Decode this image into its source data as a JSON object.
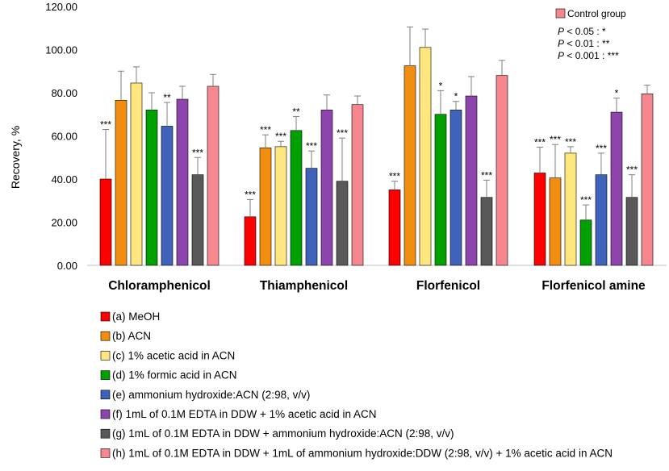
{
  "chart_data": {
    "type": "bar",
    "title": "",
    "ylabel": "Recovery, %",
    "xlabel": "",
    "ylim": [
      0,
      120
    ],
    "yticks": [
      "0.00",
      "20.00",
      "40.00",
      "60.00",
      "80.00",
      "100.00",
      "120.00"
    ],
    "categories": [
      "Chloramphenicol",
      "Thiamphenicol",
      "Florfenicol",
      "Florfenicol amine"
    ],
    "series": [
      {
        "name": "(a) MeOH",
        "color": "#ff0000",
        "values": [
          40,
          22.5,
          35,
          42.8
        ],
        "errors": [
          23,
          8,
          4,
          12
        ],
        "sig": [
          "***",
          "***",
          "***",
          "***"
        ]
      },
      {
        "name": "(b) ACN",
        "color": "#f28e0f",
        "values": [
          76.5,
          54.5,
          92.5,
          40.5
        ],
        "errors": [
          13.5,
          6,
          18,
          15.5
        ],
        "sig": [
          "",
          "***",
          "",
          "***"
        ]
      },
      {
        "name": "(c) 1% acetic acid in ACN",
        "color": "#ffe67e",
        "values": [
          84.5,
          55,
          101,
          52
        ],
        "errors": [
          7.5,
          2.5,
          8.5,
          3
        ],
        "sig": [
          "",
          "***",
          "",
          "***"
        ]
      },
      {
        "name": "(d) 1% formic acid in ACN",
        "color": "#00a000",
        "values": [
          72,
          62.5,
          70,
          21
        ],
        "errors": [
          8,
          6.5,
          11,
          7
        ],
        "sig": [
          "",
          "**",
          "*",
          "***"
        ]
      },
      {
        "name": "(e) ammonium hydroxide:ACN (2:98, v/v)",
        "color": "#3f62ba",
        "values": [
          64.5,
          45,
          72,
          42
        ],
        "errors": [
          11,
          8,
          4,
          10
        ],
        "sig": [
          "**",
          "***",
          "*",
          "***"
        ]
      },
      {
        "name": "(f) 1mL of 0.1M EDTA in DDW + 1% acetic acid in ACN",
        "color": "#8e44ad",
        "values": [
          77,
          72,
          78.5,
          71
        ],
        "errors": [
          6,
          7,
          9,
          6.5
        ],
        "sig": [
          "",
          "",
          "",
          "*"
        ]
      },
      {
        "name": "(g) 1mL of 0.1M EDTA in DDW + ammonium hydroxide:ACN (2:98, v/v)",
        "color": "#595959",
        "values": [
          42,
          39,
          31.5,
          31.5
        ],
        "errors": [
          8,
          20,
          8,
          10.5
        ],
        "sig": [
          "***",
          "***",
          "***",
          "***"
        ]
      },
      {
        "name": "(h) 1mL of 0.1M EDTA in DDW + 1mL of ammonium hydroxide:DDW (2:98, v/v) + 1% acetic acid in ACN",
        "color": "#f6878f",
        "values": [
          83,
          74.5,
          88,
          79.5
        ],
        "errors": [
          5.5,
          4,
          7,
          4
        ],
        "sig": [
          "",
          "",
          "",
          ""
        ]
      }
    ],
    "inset_legend": {
      "label": "Control group",
      "color": "#f6878f",
      "p_lines": [
        {
          "p": "P",
          "rest": " < 0.05 : *"
        },
        {
          "p": "P",
          "rest": " < 0.01 : **"
        },
        {
          "p": "P",
          "rest": " < 0.001 : ***"
        }
      ]
    },
    "grid": false,
    "legend_position": "bottom-left"
  }
}
